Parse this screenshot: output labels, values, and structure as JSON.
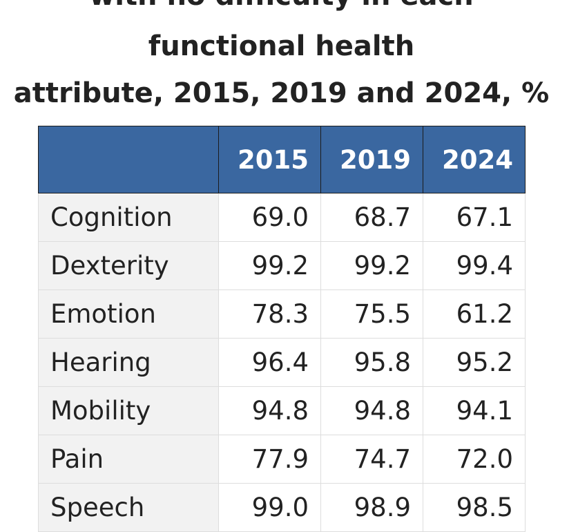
{
  "title": {
    "lines": [
      "with no difficulty in each",
      "functional health",
      "attribute, 2015, 2019 and 2024, %"
    ]
  },
  "table": {
    "header": [
      "2015",
      "2019",
      "2024"
    ],
    "rows": [
      [
        "Cognition",
        "69.0",
        "68.7",
        "67.1"
      ],
      [
        "Dexterity",
        "99.2",
        "99.2",
        "99.4"
      ],
      [
        "Emotion",
        "78.3",
        "75.5",
        "61.2"
      ],
      [
        "Hearing",
        "96.4",
        "95.8",
        "95.2"
      ],
      [
        "Mobility",
        "94.8",
        "94.8",
        "94.1"
      ],
      [
        "Pain",
        "77.9",
        "74.7",
        "72.0"
      ],
      [
        "Speech",
        "99.0",
        "98.9",
        "98.5"
      ]
    ]
  }
}
